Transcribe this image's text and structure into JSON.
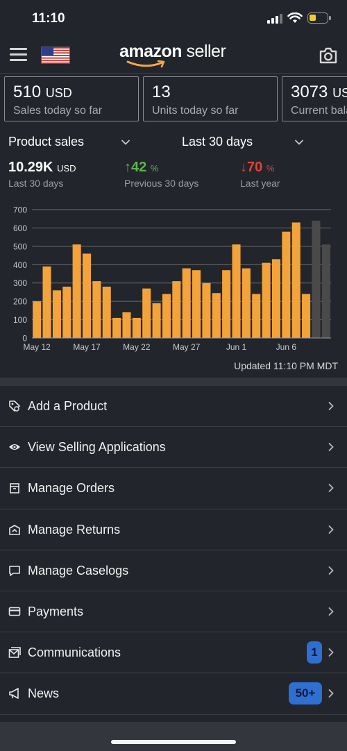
{
  "status_bar": {
    "time": "11:10"
  },
  "header": {
    "logo_bold": "amazon",
    "logo_thin": " seller"
  },
  "cards": [
    {
      "value": "510",
      "unit": "USD",
      "label": "Sales today so far"
    },
    {
      "value": "13",
      "unit": "",
      "label": "Units today so far"
    },
    {
      "value": "3073",
      "unit": "USD",
      "label": "Current balance"
    }
  ],
  "filters": {
    "metric": "Product sales",
    "range": "Last 30 days"
  },
  "metrics": {
    "total": {
      "value": "10.29K",
      "unit": "USD",
      "label": "Last 30 days"
    },
    "previous": {
      "arrow": "↑",
      "value": "42",
      "unit": "%",
      "label": "Previous 30 days",
      "color": "#5fb54b"
    },
    "last_year": {
      "arrow": "↓",
      "value": "70",
      "unit": "%",
      "label": "Last year",
      "color": "#e0443a"
    }
  },
  "chart_data": {
    "type": "bar",
    "x_tick_labels": [
      "May 12",
      "May 17",
      "May 22",
      "May 27",
      "Jun 1",
      "Jun 6"
    ],
    "x_tick_index": [
      0,
      5,
      10,
      15,
      20,
      25
    ],
    "values": [
      200,
      390,
      260,
      280,
      510,
      460,
      310,
      280,
      110,
      140,
      110,
      270,
      190,
      240,
      310,
      380,
      370,
      300,
      245,
      370,
      510,
      380,
      240,
      410,
      430,
      580,
      630,
      240
    ],
    "extra_values": [
      640,
      510
    ],
    "ylim": [
      0,
      700
    ],
    "yticks": [
      0,
      100,
      200,
      300,
      400,
      500,
      600,
      700
    ],
    "grid": true,
    "bar_color": "#f2a33a",
    "extra_color": "#4a4a4a"
  },
  "updated_text": "Updated 11:10 PM MDT",
  "menu": [
    {
      "label": "Add a Product",
      "icon": "tag-icon",
      "badge": ""
    },
    {
      "label": "View Selling Applications",
      "icon": "eye-icon",
      "badge": ""
    },
    {
      "label": "Manage Orders",
      "icon": "box-icon",
      "badge": ""
    },
    {
      "label": "Manage Returns",
      "icon": "return-box-icon",
      "badge": ""
    },
    {
      "label": "Manage Caselogs",
      "icon": "chat-bubble-icon",
      "badge": ""
    },
    {
      "label": "Payments",
      "icon": "credit-card-icon",
      "badge": ""
    },
    {
      "label": "Communications",
      "icon": "mail-icon",
      "badge": "1"
    },
    {
      "label": "News",
      "icon": "megaphone-icon",
      "badge": "50+"
    }
  ]
}
